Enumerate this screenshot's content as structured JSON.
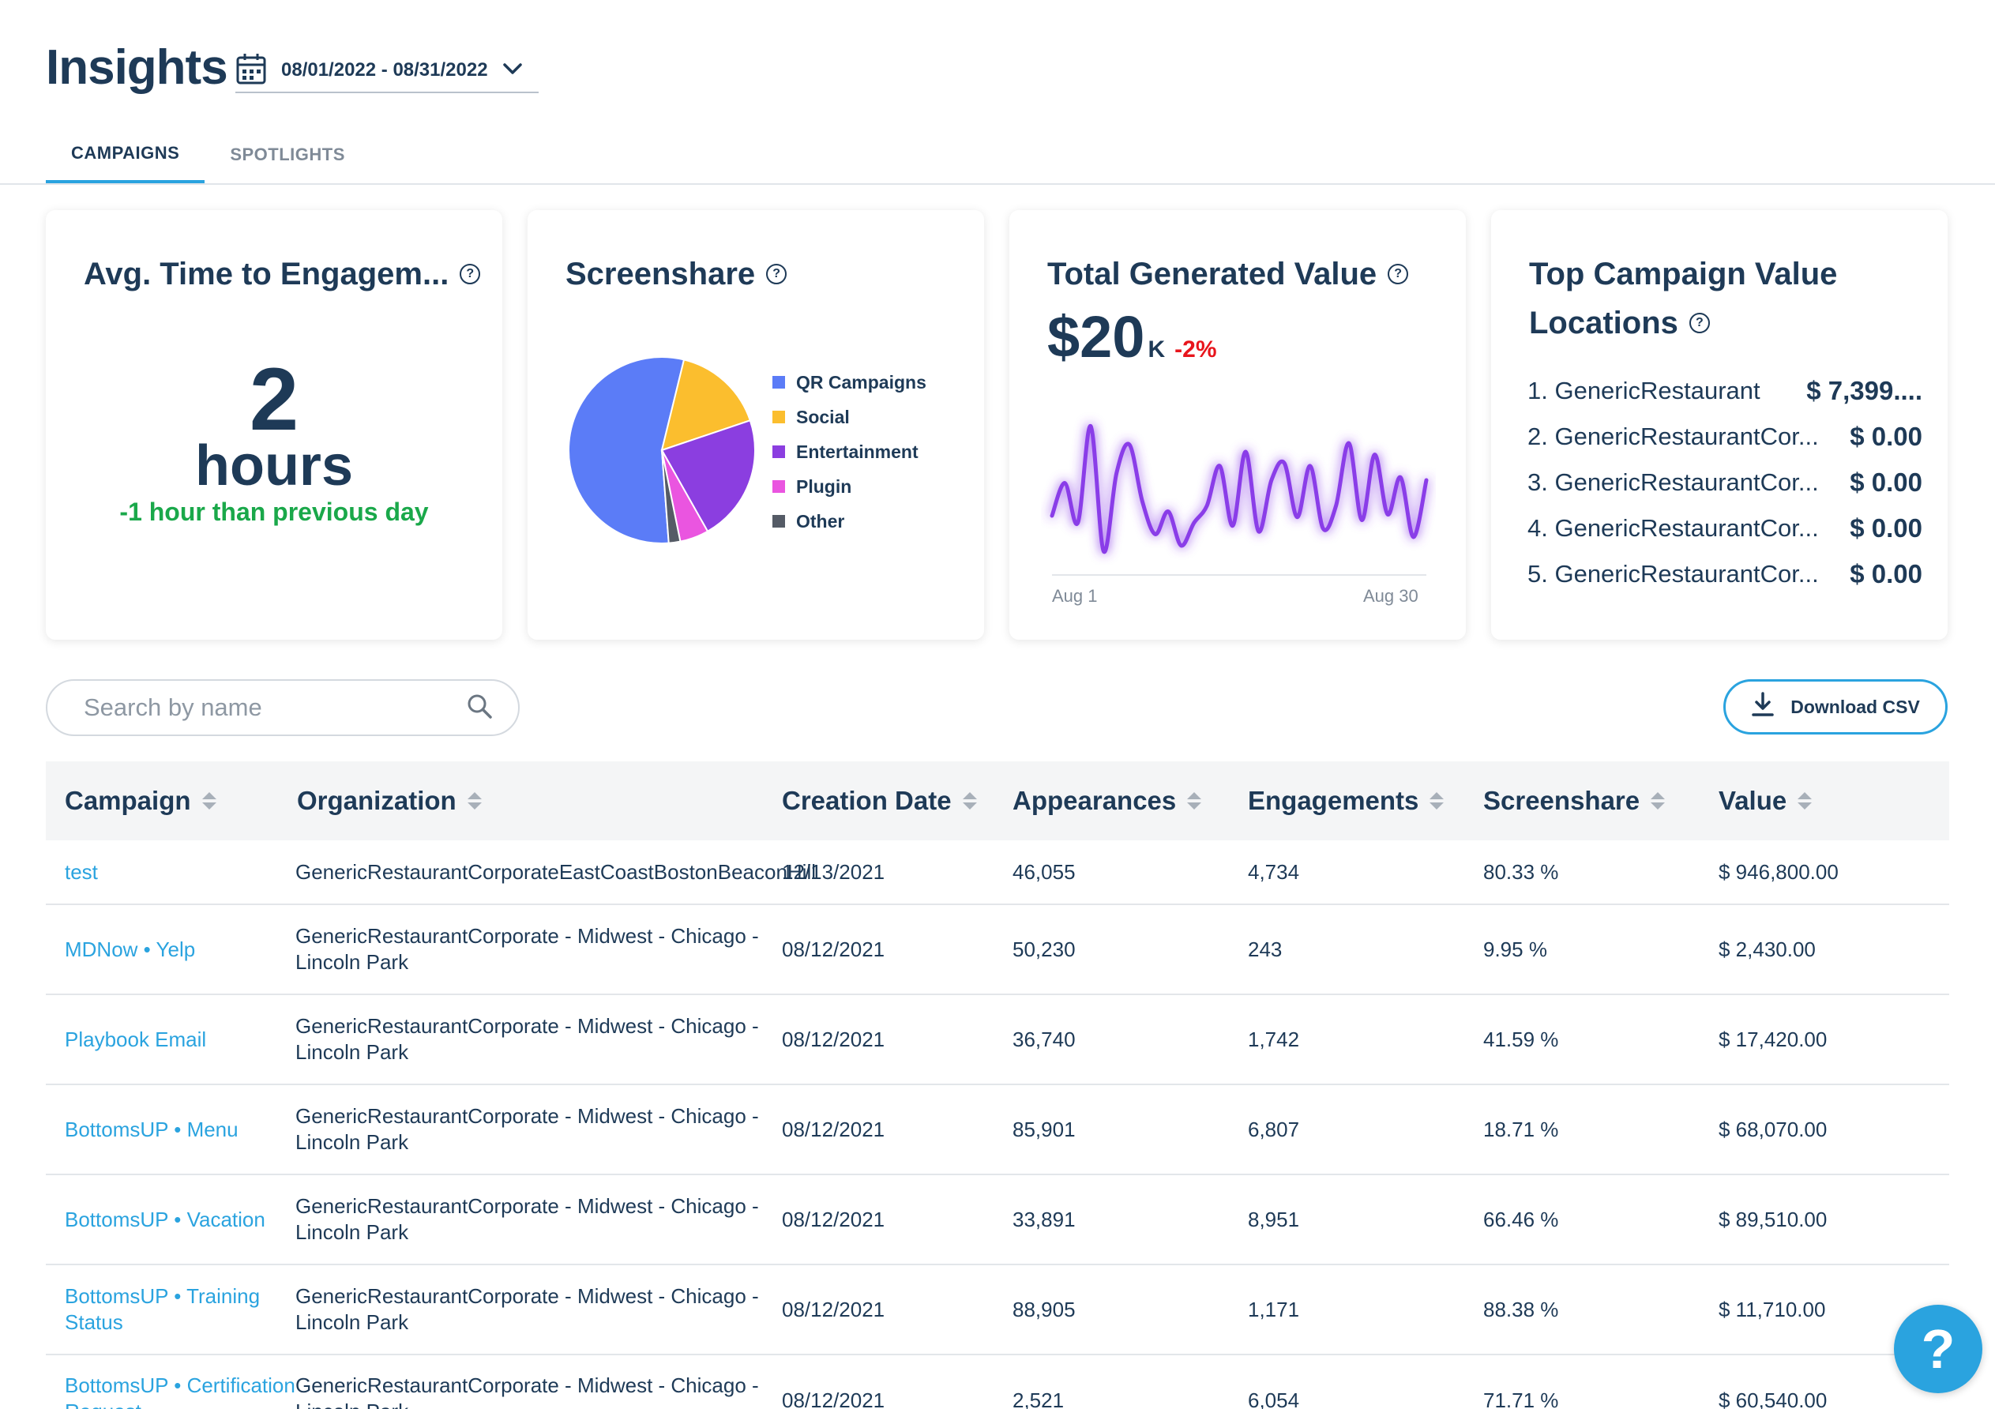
{
  "header": {
    "title": "Insights",
    "date_range": "08/01/2022 - 08/31/2022"
  },
  "tabs": [
    {
      "label": "CAMPAIGNS",
      "active": true
    },
    {
      "label": "SPOTLIGHTS",
      "active": false
    }
  ],
  "cards": {
    "engagement": {
      "title": "Avg. Time to Engagem...",
      "value": "2",
      "unit": "hours",
      "delta": "-1 hour than previous day"
    },
    "screenshare": {
      "title": "Screenshare",
      "legend": [
        {
          "label": "QR Campaigns",
          "color": "#5b7cf7"
        },
        {
          "label": "Social",
          "color": "#fbbe2e"
        },
        {
          "label": "Entertainment",
          "color": "#8b3ee0"
        },
        {
          "label": "Plugin",
          "color": "#ea55e0"
        },
        {
          "label": "Other",
          "color": "#555b66"
        }
      ]
    },
    "total_value": {
      "title": "Total Generated Value",
      "value": "$20",
      "suffix": "K",
      "delta": "-2%",
      "start_label": "Aug 1",
      "end_label": "Aug 30"
    },
    "top_locations": {
      "title_line1": "Top Campaign Value",
      "title_line2": "Locations",
      "items": [
        {
          "name": "1. GenericRestaurant",
          "value": "$ 7,399...."
        },
        {
          "name": "2. GenericRestaurantCor...",
          "value": "$ 0.00"
        },
        {
          "name": "3. GenericRestaurantCor...",
          "value": "$ 0.00"
        },
        {
          "name": "4. GenericRestaurantCor...",
          "value": "$ 0.00"
        },
        {
          "name": "5. GenericRestaurantCor...",
          "value": "$ 0.00"
        }
      ]
    }
  },
  "search": {
    "placeholder": "Search by name"
  },
  "download": {
    "label": "Download CSV"
  },
  "table": {
    "columns": [
      "Campaign",
      "Organization",
      "Creation Date",
      "Appearances",
      "Engagements",
      "Screenshare",
      "Value"
    ],
    "rows": [
      {
        "campaign": "test",
        "org": "GenericRestaurantCorporateEastCoastBostonBeaconHill",
        "date": "12/13/2021",
        "appearances": "46,055",
        "engagements": "4,734",
        "screenshare": "80.33 %",
        "value": "$ 946,800.00"
      },
      {
        "campaign": "MDNow • Yelp",
        "org": "GenericRestaurantCorporate - Midwest - Chicago - Lincoln Park",
        "date": "08/12/2021",
        "appearances": "50,230",
        "engagements": "243",
        "screenshare": "9.95 %",
        "value": "$ 2,430.00"
      },
      {
        "campaign": "Playbook Email",
        "org": "GenericRestaurantCorporate - Midwest - Chicago - Lincoln Park",
        "date": "08/12/2021",
        "appearances": "36,740",
        "engagements": "1,742",
        "screenshare": "41.59 %",
        "value": "$ 17,420.00"
      },
      {
        "campaign": "BottomsUP • Menu",
        "org": "GenericRestaurantCorporate - Midwest - Chicago - Lincoln Park",
        "date": "08/12/2021",
        "appearances": "85,901",
        "engagements": "6,807",
        "screenshare": "18.71 %",
        "value": "$ 68,070.00"
      },
      {
        "campaign": "BottomsUP • Vacation",
        "org": "GenericRestaurantCorporate - Midwest - Chicago - Lincoln Park",
        "date": "08/12/2021",
        "appearances": "33,891",
        "engagements": "8,951",
        "screenshare": "66.46 %",
        "value": "$ 89,510.00"
      },
      {
        "campaign": "BottomsUP • Training Status",
        "org": "GenericRestaurantCorporate - Midwest - Chicago - Lincoln Park",
        "date": "08/12/2021",
        "appearances": "88,905",
        "engagements": "1,171",
        "screenshare": "88.38 %",
        "value": "$ 11,710.00"
      },
      {
        "campaign": "BottomsUP • Certification Request",
        "org": "GenericRestaurantCorporate - Midwest - Chicago - Lincoln Park",
        "date": "08/12/2021",
        "appearances": "2,521",
        "engagements": "6,054",
        "screenshare": "71.71 %",
        "value": "$ 60,540.00"
      }
    ]
  },
  "help_fab": {
    "label": "?"
  },
  "chart_data": [
    {
      "type": "pie",
      "title": "Screenshare",
      "categories": [
        "QR Campaigns",
        "Social",
        "Entertainment",
        "Plugin",
        "Other"
      ],
      "values": [
        55,
        16,
        22,
        5,
        2
      ],
      "colors": [
        "#5b7cf7",
        "#fbbe2e",
        "#8b3ee0",
        "#ea55e0",
        "#555b66"
      ]
    },
    {
      "type": "line",
      "title": "Total Generated Value",
      "x": [
        "Aug 1",
        "Aug 2",
        "Aug 3",
        "Aug 4",
        "Aug 5",
        "Aug 6",
        "Aug 7",
        "Aug 8",
        "Aug 9",
        "Aug 10",
        "Aug 11",
        "Aug 12",
        "Aug 13",
        "Aug 14",
        "Aug 15",
        "Aug 16",
        "Aug 17",
        "Aug 18",
        "Aug 19",
        "Aug 20",
        "Aug 21",
        "Aug 22",
        "Aug 23",
        "Aug 24",
        "Aug 25",
        "Aug 26",
        "Aug 27",
        "Aug 28",
        "Aug 29",
        "Aug 30"
      ],
      "series": [
        {
          "values": [
            35,
            58,
            30,
            98,
            10,
            65,
            85,
            45,
            22,
            38,
            14,
            30,
            42,
            70,
            28,
            80,
            24,
            60,
            72,
            34,
            70,
            26,
            42,
            86,
            32,
            78,
            36,
            62,
            20,
            60
          ]
        }
      ],
      "xlabel": "",
      "ylabel": ""
    }
  ]
}
